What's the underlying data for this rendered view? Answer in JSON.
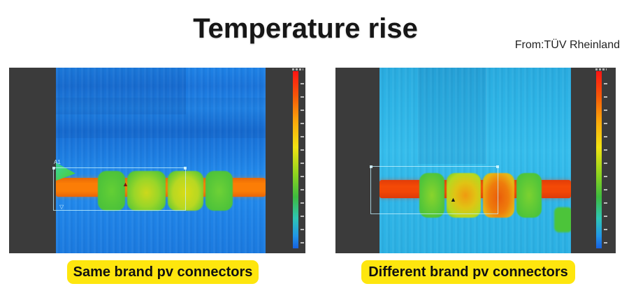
{
  "header": {
    "title": "Temperature rise",
    "source": "From:TÜV Rheinland"
  },
  "panels": {
    "left": {
      "alt": "Thermal image of same brand pv connectors",
      "roi_label": "A1",
      "roi_center_marker": "▲",
      "roi_corner_marker": "▽",
      "colors": {
        "background_blue": "#1b7ce4",
        "cable_orange": "#fa7d06",
        "connector_green": "#55c83a",
        "connector_yellow": "#c8da1c",
        "side_bars": "#3b3b3b"
      }
    },
    "right": {
      "alt": "Thermal image of different brand pv connectors",
      "roi_center_marker": "▲",
      "colors": {
        "background_cyan": "#2fb4e6",
        "cable_red": "#f24406",
        "connector_green": "#55c83a",
        "hotspot_orange": "#ee6a0a",
        "side_bars": "#3b3b3b"
      }
    }
  },
  "colorbar": {
    "gradient_top_to_bottom": [
      "#ff1414",
      "#f55708",
      "#fba60a",
      "#f2e312",
      "#8fd41e",
      "#3dbb3f",
      "#2ec6b4",
      "#2196e8",
      "#1860e0"
    ]
  },
  "captions": {
    "left": "Same brand pv connectors",
    "right": "Different brand pv connectors",
    "background": "#fee60e",
    "text_color": "#111111"
  }
}
